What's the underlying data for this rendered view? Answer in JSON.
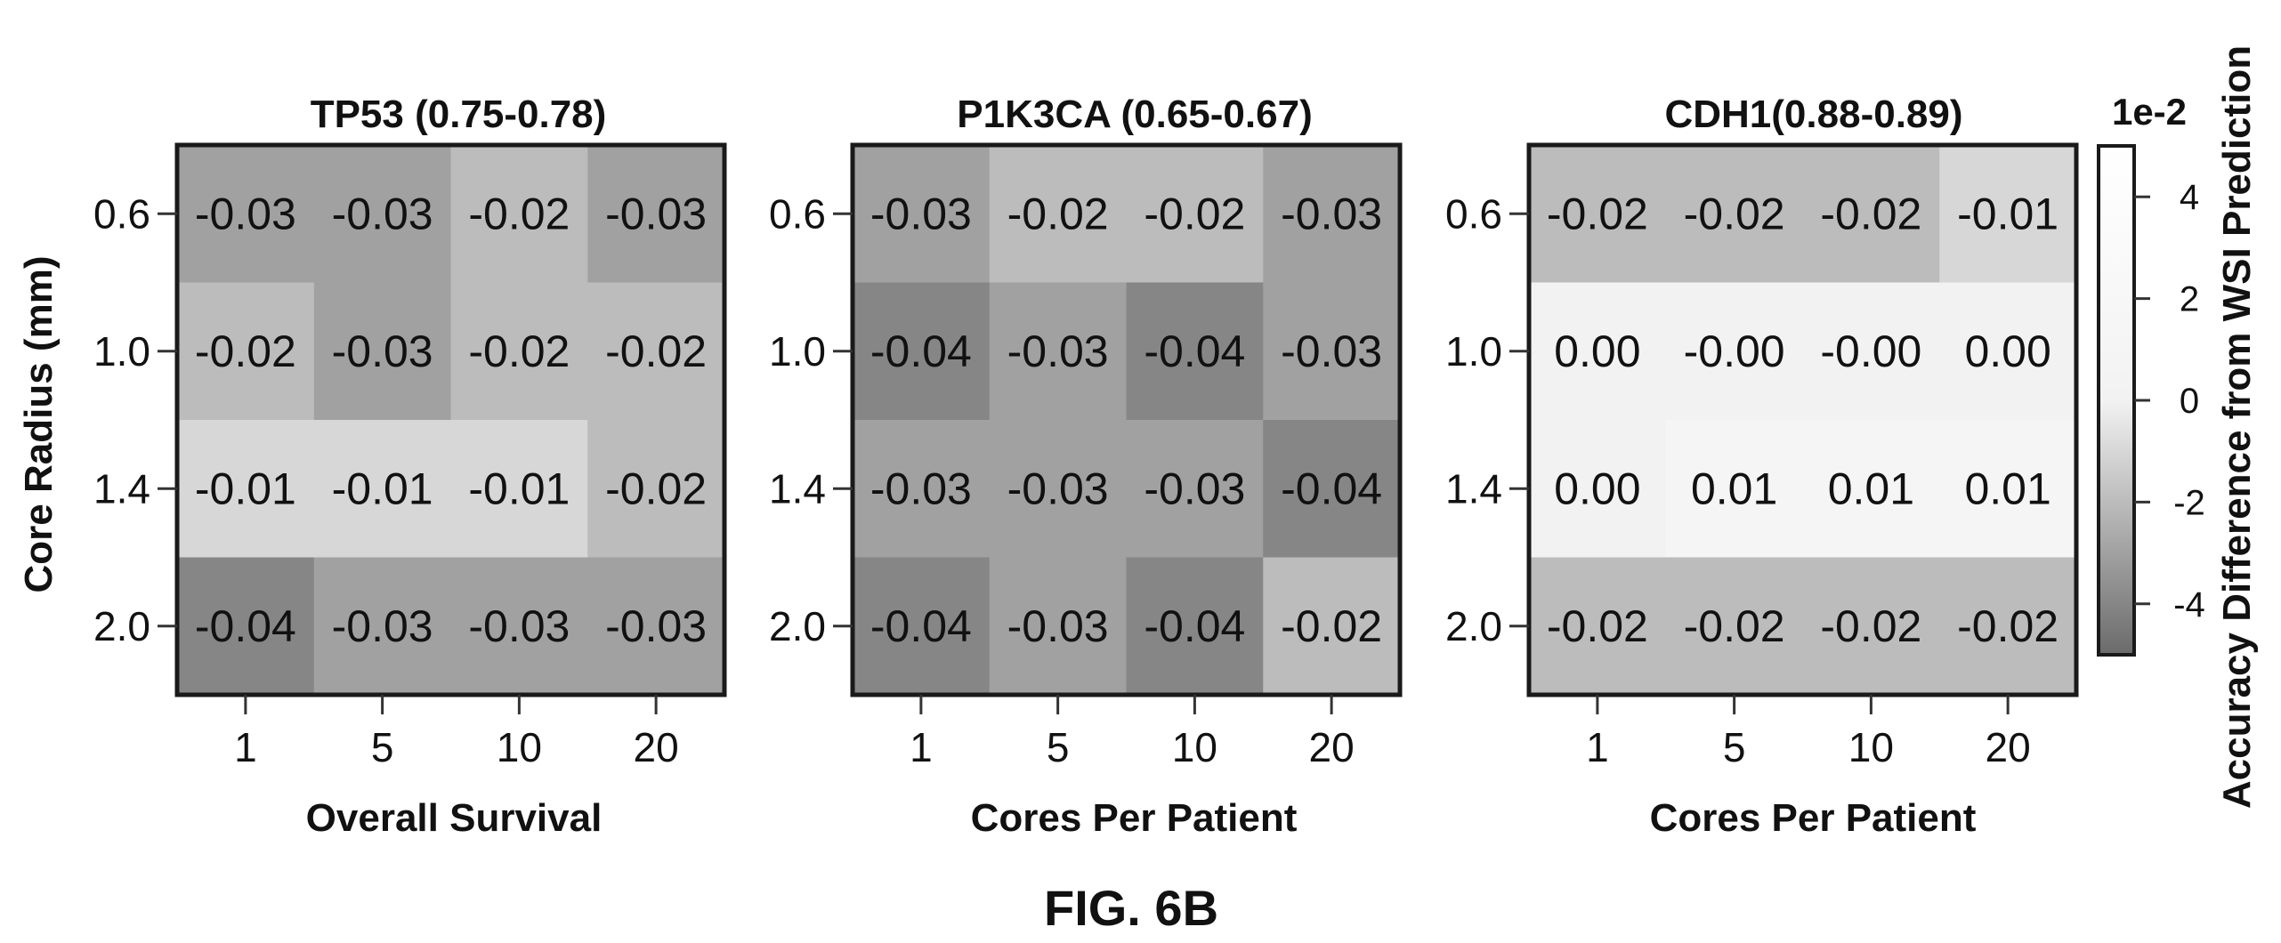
{
  "figure_caption": "FIG. 6B",
  "colors": {
    "min": "#6b6b6b",
    "mid": "#f2f2f2",
    "max": "#ffffff",
    "frame": "#1a1a1a"
  },
  "chart_data": [
    {
      "type": "heatmap",
      "title": "TP53 (0.75-0.78)",
      "xlabel": "Overall Survival",
      "ylabel": "Core Radius (mm)",
      "x_categories": [
        "1",
        "5",
        "10",
        "20"
      ],
      "y_categories": [
        "0.6",
        "1.0",
        "1.4",
        "2.0"
      ],
      "values": [
        [
          -0.03,
          -0.03,
          -0.02,
          -0.03
        ],
        [
          -0.02,
          -0.03,
          -0.02,
          -0.02
        ],
        [
          -0.01,
          -0.01,
          -0.01,
          -0.02
        ],
        [
          -0.04,
          -0.03,
          -0.03,
          -0.03
        ]
      ],
      "cell_labels": [
        [
          "-0.03",
          "-0.03",
          "-0.02",
          "-0.03"
        ],
        [
          "-0.02",
          "-0.03",
          "-0.02",
          "-0.02"
        ],
        [
          "-0.01",
          "-0.01",
          "-0.01",
          "-0.02"
        ],
        [
          "-0.04",
          "-0.03",
          "-0.03",
          "-0.03"
        ]
      ]
    },
    {
      "type": "heatmap",
      "title": "P1K3CA (0.65-0.67)",
      "xlabel": "Cores Per Patient",
      "ylabel": "",
      "x_categories": [
        "1",
        "5",
        "10",
        "20"
      ],
      "y_categories": [
        "0.6",
        "1.0",
        "1.4",
        "2.0"
      ],
      "values": [
        [
          -0.03,
          -0.02,
          -0.02,
          -0.03
        ],
        [
          -0.04,
          -0.03,
          -0.04,
          -0.03
        ],
        [
          -0.03,
          -0.03,
          -0.03,
          -0.04
        ],
        [
          -0.04,
          -0.03,
          -0.04,
          -0.02
        ]
      ],
      "cell_labels": [
        [
          "-0.03",
          "-0.02",
          "-0.02",
          "-0.03"
        ],
        [
          "-0.04",
          "-0.03",
          "-0.04",
          "-0.03"
        ],
        [
          "-0.03",
          "-0.03",
          "-0.03",
          "-0.04"
        ],
        [
          "-0.04",
          "-0.03",
          "-0.04",
          "-0.02"
        ]
      ]
    },
    {
      "type": "heatmap",
      "title": "CDH1(0.88-0.89)",
      "xlabel": "Cores Per Patient",
      "ylabel": "",
      "x_categories": [
        "1",
        "5",
        "10",
        "20"
      ],
      "y_categories": [
        "0.6",
        "1.0",
        "1.4",
        "2.0"
      ],
      "values": [
        [
          -0.02,
          -0.02,
          -0.02,
          -0.01
        ],
        [
          0.0,
          -0.0,
          -0.0,
          0.0
        ],
        [
          0.0,
          0.01,
          0.01,
          0.01
        ],
        [
          -0.02,
          -0.02,
          -0.02,
          -0.02
        ]
      ],
      "cell_labels": [
        [
          "-0.02",
          "-0.02",
          "-0.02",
          "-0.01"
        ],
        [
          "0.00",
          "-0.00",
          "-0.00",
          "0.00"
        ],
        [
          "0.00",
          "0.01",
          "0.01",
          "0.01"
        ],
        [
          "-0.02",
          "-0.02",
          "-0.02",
          "-0.02"
        ]
      ]
    }
  ],
  "colorbar": {
    "unit_label": "1e-2",
    "title": "Accuracy Difference from WSI Prediction",
    "range": [
      -5,
      5
    ],
    "ticks": [
      4,
      2,
      0,
      -2,
      -4
    ],
    "tick_labels": [
      "4",
      "2",
      "0",
      "-2",
      "-4"
    ]
  }
}
